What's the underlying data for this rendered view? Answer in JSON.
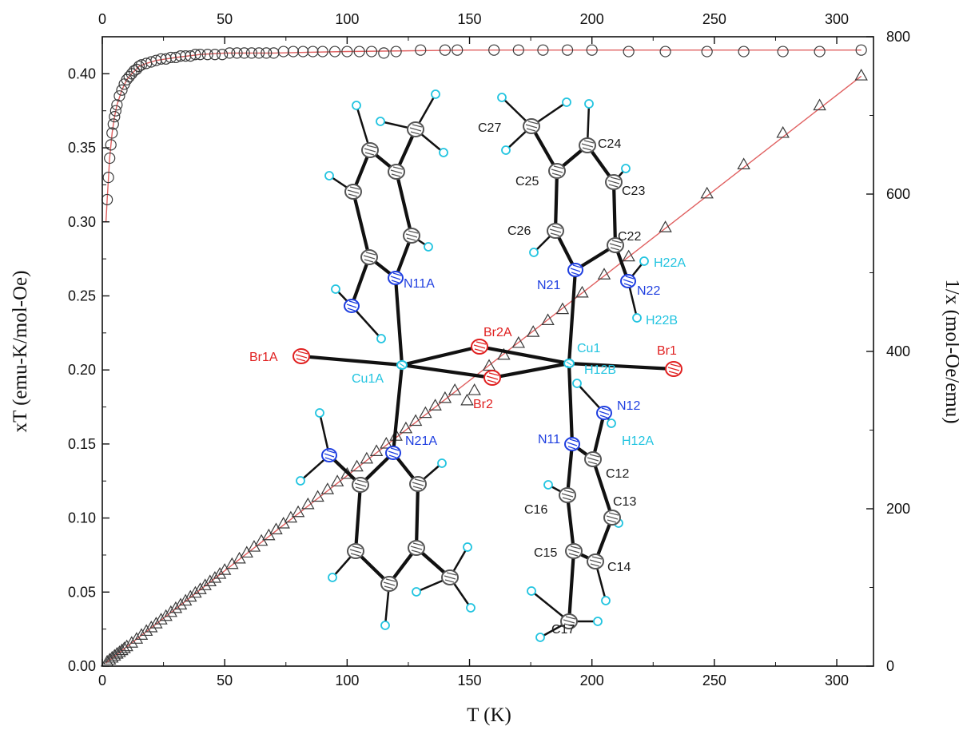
{
  "chart_data": {
    "type": "scatter",
    "xlabel": "T (K)",
    "ylabel_left": "xT (emu-K/mol-Oe)",
    "ylabel_right": "1/x (mol-Oe/emu)",
    "xlim": [
      0,
      315
    ],
    "ylim_left": [
      0,
      0.425
    ],
    "ylim_right": [
      0,
      800
    ],
    "x_ticks": [
      "0",
      "50",
      "100",
      "150",
      "200",
      "250",
      "300"
    ],
    "y_left_ticks": [
      "0.00",
      "0.05",
      "0.10",
      "0.15",
      "0.20",
      "0.25",
      "0.30",
      "0.35",
      "0.40"
    ],
    "y_right_ticks": [
      "0",
      "200",
      "400",
      "600",
      "800"
    ],
    "grid": false,
    "series": [
      {
        "axis": "left",
        "marker": "circle",
        "x": [
          2,
          2.5,
          3,
          3.5,
          4,
          4.5,
          5,
          5.5,
          6,
          7,
          8,
          9,
          10,
          11,
          12,
          13,
          14,
          15,
          16,
          18,
          20,
          22,
          24,
          26,
          28,
          30,
          32,
          34,
          36,
          38,
          40,
          43,
          46,
          49,
          52,
          55,
          58,
          61,
          64,
          67,
          70,
          74,
          78,
          82,
          86,
          90,
          95,
          100,
          105,
          110,
          115,
          120,
          130,
          140,
          145,
          160,
          170,
          180,
          190,
          200,
          215,
          230,
          247,
          262,
          278,
          293,
          310
        ],
        "y": [
          0.315,
          0.33,
          0.343,
          0.352,
          0.36,
          0.366,
          0.371,
          0.375,
          0.379,
          0.385,
          0.389,
          0.393,
          0.396,
          0.398,
          0.4,
          0.402,
          0.403,
          0.405,
          0.406,
          0.407,
          0.408,
          0.409,
          0.41,
          0.41,
          0.411,
          0.411,
          0.412,
          0.412,
          0.412,
          0.413,
          0.413,
          0.413,
          0.413,
          0.413,
          0.414,
          0.414,
          0.414,
          0.414,
          0.414,
          0.414,
          0.414,
          0.415,
          0.415,
          0.415,
          0.415,
          0.415,
          0.415,
          0.415,
          0.415,
          0.415,
          0.414,
          0.415,
          0.416,
          0.416,
          0.416,
          0.416,
          0.416,
          0.416,
          0.416,
          0.416,
          0.415,
          0.415,
          0.415,
          0.415,
          0.415,
          0.415,
          0.416
        ]
      },
      {
        "axis": "right",
        "marker": "triangle",
        "x": [
          2,
          3,
          4,
          5,
          6,
          7,
          8,
          9,
          10,
          12,
          14,
          16,
          18,
          20,
          22,
          24,
          26,
          28,
          30,
          32,
          34,
          36,
          38,
          40,
          42,
          44,
          46,
          48,
          50,
          53,
          56,
          59,
          62,
          65,
          68,
          71,
          74,
          77,
          80,
          84,
          88,
          92,
          96,
          100,
          104,
          108,
          112,
          116,
          120,
          124,
          128,
          132,
          136,
          140,
          144,
          149,
          152,
          158,
          164,
          170,
          176,
          182,
          188,
          196,
          205,
          215,
          230,
          247,
          262,
          278,
          293,
          310
        ],
        "y": [
          5,
          7.5,
          10,
          12.5,
          15,
          17,
          19.5,
          22,
          24.5,
          29,
          34,
          39,
          44,
          48.5,
          53.5,
          58.5,
          63,
          68,
          73,
          77.5,
          82.5,
          87.5,
          92.5,
          97,
          102,
          107,
          111.5,
          116.5,
          121.5,
          129,
          136,
          143.5,
          151,
          158.5,
          165.5,
          173,
          180.5,
          188,
          195,
          205,
          214.5,
          224,
          234,
          243.5,
          253,
          263,
          272.5,
          282,
          292,
          301.5,
          311,
          321,
          330.5,
          340,
          350,
          337,
          350,
          381,
          395,
          410,
          424,
          439,
          453,
          474,
          497,
          520,
          557,
          600,
          637,
          677,
          712,
          750
        ]
      }
    ],
    "fit_curves": [
      {
        "axis": "left",
        "x": [
          1.5,
          2,
          3,
          4,
          5,
          6,
          8,
          10,
          12,
          15,
          18,
          22,
          26,
          30,
          40,
          50,
          70,
          100,
          150,
          200,
          250,
          310
        ],
        "y": [
          0.3,
          0.315,
          0.343,
          0.36,
          0.371,
          0.379,
          0.389,
          0.396,
          0.4,
          0.405,
          0.407,
          0.409,
          0.41,
          0.411,
          0.413,
          0.414,
          0.414,
          0.415,
          0.416,
          0.416,
          0.416,
          0.416
        ]
      },
      {
        "axis": "right",
        "x": [
          1.5,
          310
        ],
        "y": [
          4,
          750
        ]
      }
    ]
  },
  "structure": {
    "labels": [
      {
        "text": "C27",
        "color": "#1a1a1a"
      },
      {
        "text": "C24",
        "color": "#1a1a1a"
      },
      {
        "text": "C25",
        "color": "#1a1a1a"
      },
      {
        "text": "C23",
        "color": "#1a1a1a"
      },
      {
        "text": "C26",
        "color": "#1a1a1a"
      },
      {
        "text": "C22",
        "color": "#1a1a1a"
      },
      {
        "text": "H22A",
        "color": "#22c4e0"
      },
      {
        "text": "N21",
        "color": "#1f3fe0"
      },
      {
        "text": "N22",
        "color": "#1f3fe0"
      },
      {
        "text": "N11A",
        "color": "#1f3fe0"
      },
      {
        "text": "H22B",
        "color": "#22c4e0"
      },
      {
        "text": "Br2A",
        "color": "#e02020"
      },
      {
        "text": "Cu1",
        "color": "#22c4e0"
      },
      {
        "text": "Br1",
        "color": "#e02020"
      },
      {
        "text": "Br1A",
        "color": "#e02020"
      },
      {
        "text": "Cu1A",
        "color": "#22c4e0"
      },
      {
        "text": "H12B",
        "color": "#22c4e0"
      },
      {
        "text": "Br2",
        "color": "#e02020"
      },
      {
        "text": "N12",
        "color": "#1f3fe0"
      },
      {
        "text": "N11",
        "color": "#1f3fe0"
      },
      {
        "text": "H12A",
        "color": "#22c4e0"
      },
      {
        "text": "N21A",
        "color": "#1f3fe0"
      },
      {
        "text": "C12",
        "color": "#1a1a1a"
      },
      {
        "text": "C16",
        "color": "#1a1a1a"
      },
      {
        "text": "C13",
        "color": "#1a1a1a"
      },
      {
        "text": "C15",
        "color": "#1a1a1a"
      },
      {
        "text": "C14",
        "color": "#1a1a1a"
      },
      {
        "text": "C17",
        "color": "#1a1a1a"
      }
    ]
  },
  "colors": {
    "marker_stroke": "#3a3a3a",
    "fit_line": "#e06060",
    "axis": "#111111",
    "bond": "#111111",
    "carbon": "#555555",
    "nitrogen": "#1f3fe0",
    "bromine": "#e02020",
    "copper": "#22c4e0",
    "hydrogen": "#22c4e0"
  }
}
